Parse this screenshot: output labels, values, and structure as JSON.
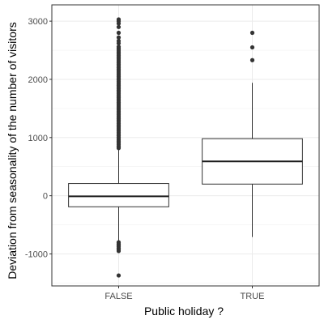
{
  "chart_data": {
    "type": "boxplot",
    "xlabel": "Public holiday ?",
    "ylabel": "Deviation from seasonality of the number of visitors",
    "categories": [
      "FALSE",
      "TRUE"
    ],
    "ylim": [
      -1550,
      3280
    ],
    "yticks": [
      -1000,
      0,
      1000,
      2000,
      3000
    ],
    "yticklabels": [
      "-1000",
      "0",
      "1000",
      "2000",
      "3000"
    ],
    "grid": true,
    "legend": "none",
    "boxes": [
      {
        "category": "FALSE",
        "whisker_low": -780,
        "q1": -190,
        "median": -10,
        "q3": 210,
        "whisker_high": 800,
        "outliers": [
          -800,
          -830,
          -850,
          -870,
          -900,
          -920,
          -950,
          -1370,
          820,
          850,
          880,
          910,
          940,
          970,
          1000,
          1030,
          1060,
          1090,
          1120,
          1150,
          1180,
          1210,
          1240,
          1270,
          1300,
          1330,
          1360,
          1390,
          1420,
          1450,
          1480,
          1510,
          1540,
          1570,
          1600,
          1630,
          1660,
          1690,
          1720,
          1750,
          1780,
          1810,
          1840,
          1870,
          1900,
          1930,
          1960,
          1990,
          2020,
          2050,
          2080,
          2110,
          2140,
          2170,
          2200,
          2230,
          2260,
          2290,
          2320,
          2350,
          2380,
          2410,
          2440,
          2470,
          2500,
          2530,
          2560,
          2620,
          2660,
          2720,
          2800,
          2900,
          2960,
          3000,
          3030
        ]
      },
      {
        "category": "TRUE",
        "whisker_low": -710,
        "q1": 200,
        "median": 590,
        "q3": 980,
        "whisker_high": 1940,
        "outliers": [
          2330,
          2550,
          2800
        ]
      }
    ]
  }
}
